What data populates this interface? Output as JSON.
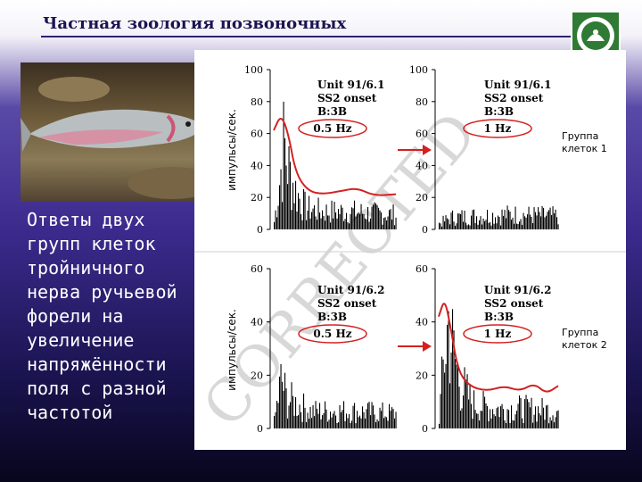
{
  "slide": {
    "title": "Частная зоология позвоночных",
    "caption": "Ответы двух\nгрупп клеток\nтройничного\nнерва ручьевой\nфорели на\nувеличение\nнапряжённости\nполя с разной\nчастотой",
    "watermark": "CORRECTED"
  },
  "colors": {
    "title": "#1a1450",
    "background_top": "#f4f2f8",
    "background_bottom": "#07061c",
    "envelope": "#d42020",
    "bars": "#000000"
  },
  "chart_data": [
    {
      "type": "bar",
      "ylabel": "импульсы/сек.",
      "ylim": [
        0,
        100
      ],
      "yticks": [
        0,
        20,
        40,
        60,
        80,
        100
      ],
      "annotation": [
        "Unit 91/6.1",
        "SS2 onset",
        "B:3B",
        "0.5 Hz"
      ],
      "envelope": [
        [
          0.0,
          62
        ],
        [
          0.06,
          72
        ],
        [
          0.12,
          60
        ],
        [
          0.18,
          35
        ],
        [
          0.28,
          24
        ],
        [
          0.4,
          22
        ],
        [
          0.55,
          24
        ],
        [
          0.68,
          26
        ],
        [
          0.82,
          21
        ],
        [
          1.0,
          22
        ]
      ],
      "pulse_profile": [
        [
          0.0,
          5
        ],
        [
          0.04,
          30
        ],
        [
          0.08,
          58
        ],
        [
          0.12,
          40
        ],
        [
          0.18,
          25
        ],
        [
          0.26,
          14
        ],
        [
          0.4,
          12
        ],
        [
          0.6,
          12
        ],
        [
          0.8,
          11
        ],
        [
          1.0,
          10
        ]
      ]
    },
    {
      "type": "bar",
      "ylim": [
        0,
        100
      ],
      "yticks": [
        0,
        20,
        40,
        60,
        80,
        100
      ],
      "annotation": [
        "Unit 91/6.1",
        "SS2 onset",
        "B:3B",
        "1 Hz"
      ],
      "side_label": "Группа клеток 1",
      "pulse_profile": [
        [
          0.0,
          4
        ],
        [
          0.1,
          8
        ],
        [
          0.3,
          9
        ],
        [
          0.6,
          10
        ],
        [
          1.0,
          9
        ]
      ]
    },
    {
      "type": "bar",
      "ylabel": "импульсы/сек.",
      "ylim": [
        0,
        60
      ],
      "yticks": [
        0,
        20,
        40,
        60
      ],
      "annotation": [
        "Unit 91/6.2",
        "SS2 onset",
        "B:3B",
        "0.5 Hz"
      ],
      "pulse_profile": [
        [
          0.0,
          3
        ],
        [
          0.06,
          20
        ],
        [
          0.1,
          12
        ],
        [
          0.3,
          7
        ],
        [
          0.6,
          7
        ],
        [
          1.0,
          6
        ]
      ]
    },
    {
      "type": "bar",
      "ylim": [
        0,
        60
      ],
      "yticks": [
        0,
        20,
        40,
        60
      ],
      "annotation": [
        "Unit 91/6.2",
        "SS2 onset",
        "B:3B",
        "1 Hz"
      ],
      "side_label": "Группа клеток 2",
      "envelope": [
        [
          0.0,
          42
        ],
        [
          0.05,
          49
        ],
        [
          0.1,
          38
        ],
        [
          0.16,
          22
        ],
        [
          0.25,
          16
        ],
        [
          0.4,
          14
        ],
        [
          0.55,
          16
        ],
        [
          0.68,
          14
        ],
        [
          0.8,
          17
        ],
        [
          0.9,
          13
        ],
        [
          1.0,
          16
        ]
      ],
      "pulse_profile": [
        [
          0.0,
          4
        ],
        [
          0.04,
          28
        ],
        [
          0.08,
          44
        ],
        [
          0.12,
          30
        ],
        [
          0.18,
          18
        ],
        [
          0.28,
          10
        ],
        [
          0.45,
          8
        ],
        [
          0.7,
          8
        ],
        [
          1.0,
          7
        ]
      ]
    }
  ]
}
